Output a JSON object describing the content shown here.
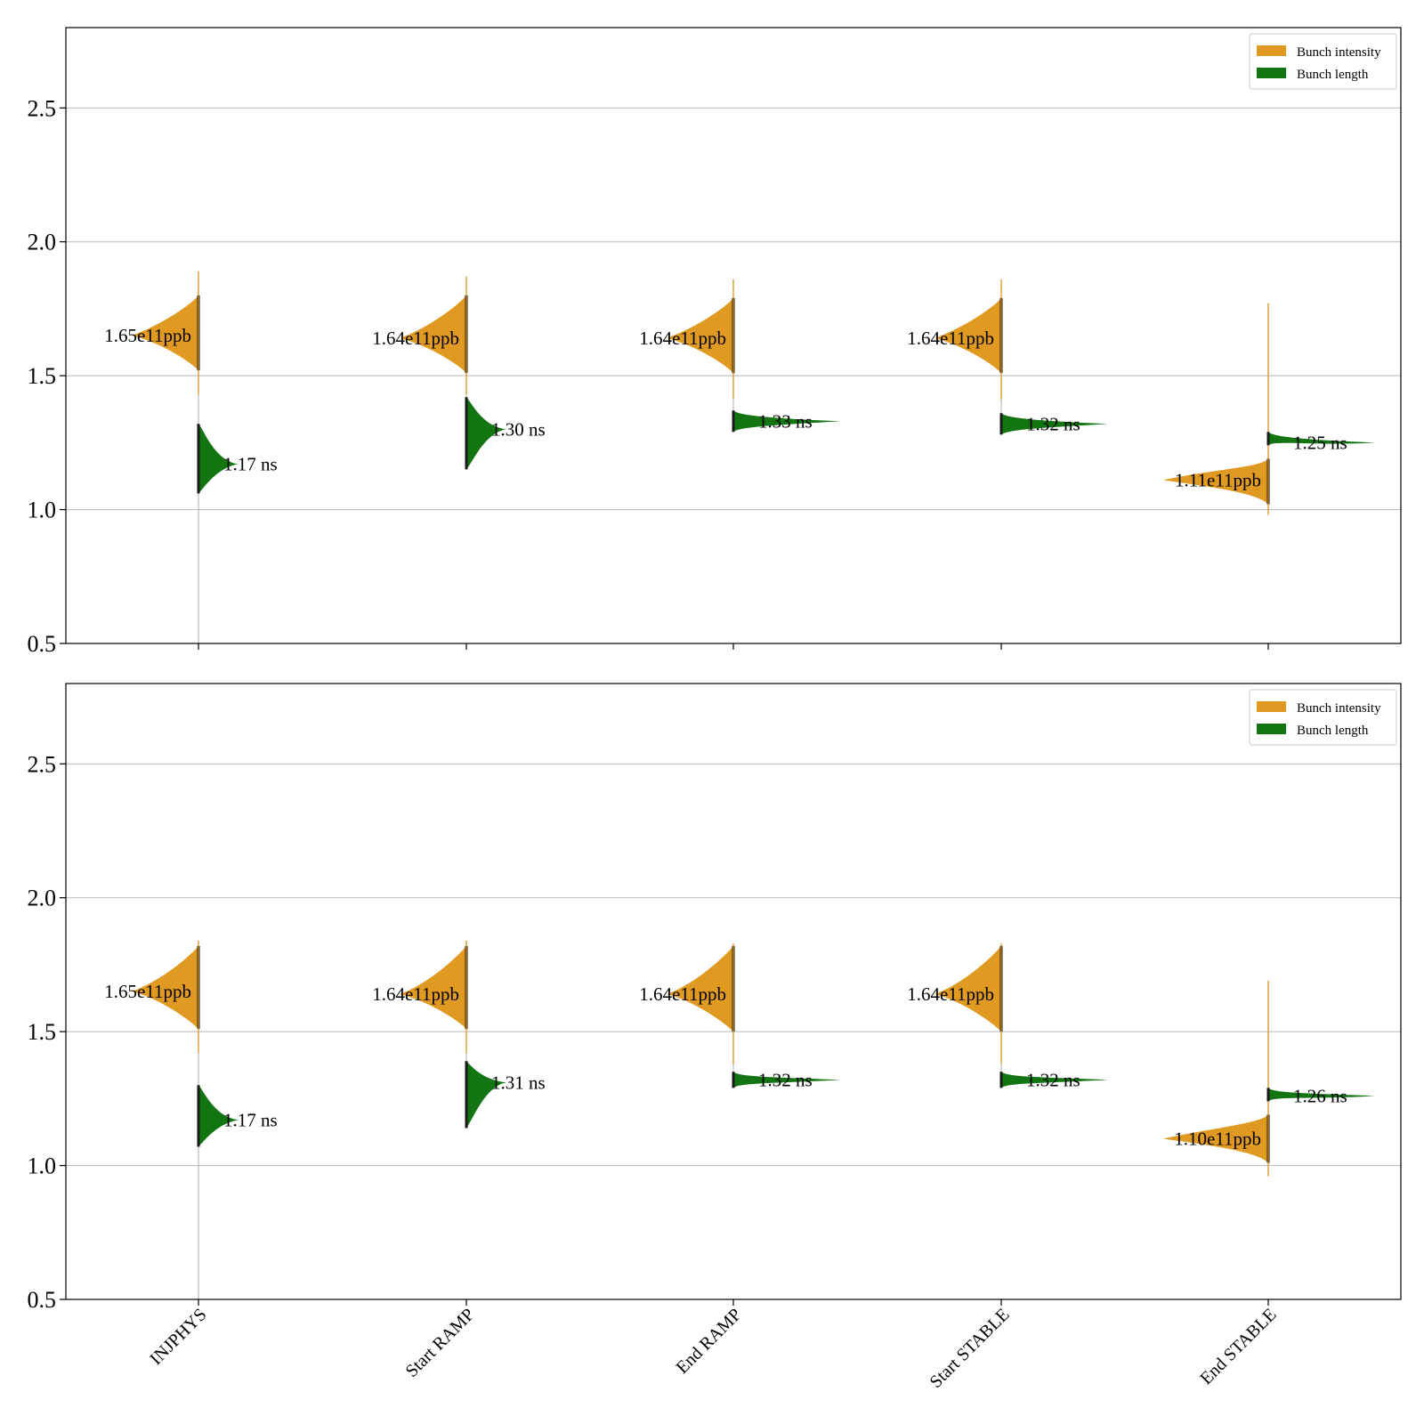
{
  "colors": {
    "intensity": "#E09A22",
    "length": "#127512",
    "grid": "#b8b8b8",
    "axis": "#000000",
    "inner": "#1a1a1a"
  },
  "chart_data": [
    {
      "type": "violin",
      "panel": "top",
      "ylim": [
        0.5,
        2.8
      ],
      "yticks": [
        "0.5",
        "1.0",
        "1.5",
        "2.0",
        "2.5"
      ],
      "grid": true,
      "legend": {
        "placement": "top-right",
        "entries": [
          "Bunch intensity",
          "Bunch length"
        ]
      },
      "categories": [
        "INJPHYS",
        "Start RAMP",
        "End RAMP",
        "Start STABLE",
        "End STABLE"
      ],
      "series": [
        {
          "name": "Bunch intensity",
          "side": "left",
          "medians": [
            1.65,
            1.64,
            1.64,
            1.64,
            1.11
          ],
          "ranges": [
            [
              1.43,
              1.89
            ],
            [
              1.43,
              1.87
            ],
            [
              1.41,
              1.86
            ],
            [
              1.41,
              1.86
            ],
            [
              0.98,
              1.77
            ]
          ],
          "core": [
            [
              1.52,
              1.8
            ],
            [
              1.51,
              1.8
            ],
            [
              1.51,
              1.79
            ],
            [
              1.51,
              1.79
            ],
            [
              1.02,
              1.19
            ]
          ],
          "labels": [
            "1.65e11ppb",
            "1.64e11ppb",
            "1.64e11ppb",
            "1.64e11ppb",
            "1.11e11ppb"
          ]
        },
        {
          "name": "Bunch length",
          "side": "right",
          "medians": [
            1.17,
            1.3,
            1.33,
            1.32,
            1.25
          ],
          "ranges": [
            [
              1.06,
              1.32
            ],
            [
              1.15,
              1.42
            ],
            [
              1.29,
              1.37
            ],
            [
              1.28,
              1.36
            ],
            [
              1.24,
              1.29
            ]
          ],
          "labels": [
            "1.17 ns",
            "1.30 ns",
            "1.33 ns",
            "1.32 ns",
            "1.25 ns"
          ]
        }
      ]
    },
    {
      "type": "violin",
      "panel": "bottom",
      "ylim": [
        0.5,
        2.8
      ],
      "yticks": [
        "0.5",
        "1.0",
        "1.5",
        "2.0",
        "2.5"
      ],
      "grid": true,
      "legend": {
        "placement": "top-right",
        "entries": [
          "Bunch intensity",
          "Bunch length"
        ]
      },
      "categories": [
        "INJPHYS",
        "Start RAMP",
        "End RAMP",
        "Start STABLE",
        "End STABLE"
      ],
      "series": [
        {
          "name": "Bunch intensity",
          "side": "left",
          "medians": [
            1.65,
            1.64,
            1.64,
            1.64,
            1.1
          ],
          "ranges": [
            [
              1.42,
              1.84
            ],
            [
              1.42,
              1.84
            ],
            [
              1.38,
              1.83
            ],
            [
              1.38,
              1.83
            ],
            [
              0.96,
              1.69
            ]
          ],
          "core": [
            [
              1.51,
              1.82
            ],
            [
              1.51,
              1.82
            ],
            [
              1.5,
              1.82
            ],
            [
              1.5,
              1.82
            ],
            [
              1.01,
              1.19
            ]
          ],
          "labels": [
            "1.65e11ppb",
            "1.64e11ppb",
            "1.64e11ppb",
            "1.64e11ppb",
            "1.10e11ppb"
          ]
        },
        {
          "name": "Bunch length",
          "side": "right",
          "medians": [
            1.17,
            1.31,
            1.32,
            1.32,
            1.26
          ],
          "ranges": [
            [
              1.07,
              1.3
            ],
            [
              1.14,
              1.39
            ],
            [
              1.29,
              1.35
            ],
            [
              1.29,
              1.35
            ],
            [
              1.24,
              1.29
            ]
          ],
          "labels": [
            "1.17 ns",
            "1.31 ns",
            "1.32 ns",
            "1.32 ns",
            "1.26 ns"
          ]
        }
      ]
    }
  ],
  "x_axis": {
    "labels": [
      "INJPHYS",
      "Start RAMP",
      "End RAMP",
      "Start STABLE",
      "End STABLE"
    ]
  }
}
